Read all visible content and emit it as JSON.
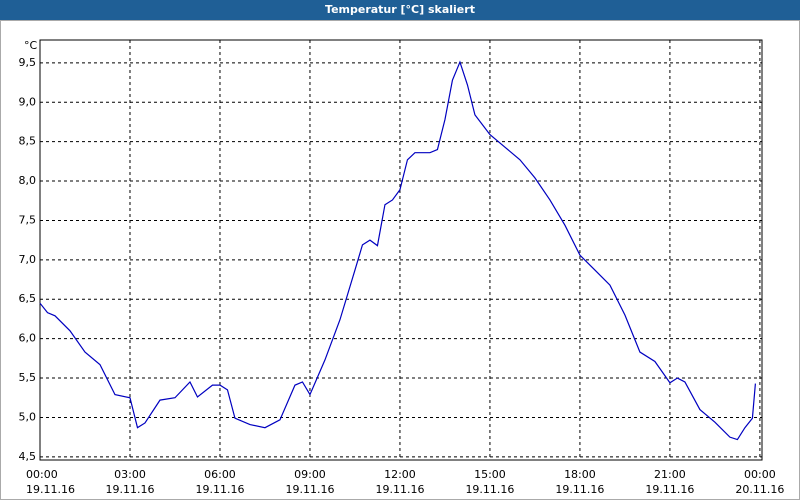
{
  "chart_data": {
    "type": "line",
    "title": "Temperatur [°C] skaliert",
    "y_unit": "°C",
    "x": [
      0,
      0.25,
      0.5,
      1.0,
      1.5,
      2.0,
      2.5,
      3.0,
      3.25,
      3.5,
      4.0,
      4.5,
      5.0,
      5.25,
      5.75,
      6.0,
      6.25,
      6.5,
      7.0,
      7.5,
      8.0,
      8.5,
      8.75,
      9.0,
      9.5,
      10.0,
      10.5,
      10.75,
      11.0,
      11.25,
      11.5,
      11.75,
      12.0,
      12.25,
      12.5,
      13.0,
      13.25,
      13.5,
      13.75,
      14.0,
      14.25,
      14.5,
      15.0,
      15.5,
      16.0,
      16.5,
      17.0,
      17.5,
      18.0,
      18.5,
      19.0,
      19.5,
      20.0,
      20.5,
      21.0,
      21.25,
      21.5,
      22.0,
      22.5,
      23.0,
      23.25,
      23.5,
      23.75,
      23.85
    ],
    "series": [
      {
        "color": "#0000c0",
        "values": [
          6.45,
          6.33,
          6.29,
          6.1,
          5.83,
          5.67,
          5.29,
          5.25,
          4.87,
          4.93,
          5.22,
          5.25,
          5.45,
          5.26,
          5.41,
          5.41,
          5.35,
          4.99,
          4.91,
          4.87,
          4.97,
          5.41,
          5.45,
          5.29,
          5.73,
          6.24,
          6.87,
          7.19,
          7.25,
          7.18,
          7.7,
          7.76,
          7.89,
          8.27,
          8.36,
          8.36,
          8.4,
          8.78,
          9.28,
          9.51,
          9.22,
          8.84,
          8.59,
          8.43,
          8.27,
          8.04,
          7.76,
          7.44,
          7.06,
          6.87,
          6.68,
          6.3,
          5.83,
          5.71,
          5.44,
          5.5,
          5.45,
          5.1,
          4.94,
          4.75,
          4.72,
          4.87,
          4.99,
          5.43
        ]
      }
    ],
    "xlim": [
      0,
      24.07
    ],
    "xticks": [
      {
        "value": 0,
        "label": "00:00"
      },
      {
        "value": 3,
        "label": "03:00"
      },
      {
        "value": 6,
        "label": "06:00"
      },
      {
        "value": 9,
        "label": "09:00"
      },
      {
        "value": 12,
        "label": "12:00"
      },
      {
        "value": 15,
        "label": "15:00"
      },
      {
        "value": 18,
        "label": "18:00"
      },
      {
        "value": 21,
        "label": "21:00"
      },
      {
        "value": 24,
        "label": "00:00"
      }
    ],
    "xtick_dates": [
      "19.11.16",
      "19.11.16",
      "19.11.16",
      "19.11.16",
      "19.11.16",
      "19.11.16",
      "19.11.16",
      "19.11.16",
      "20.11.16"
    ],
    "ylim": [
      4.46,
      9.79
    ],
    "yticks": [
      {
        "value": 4.5,
        "label": "4,5"
      },
      {
        "value": 5.0,
        "label": "5,0"
      },
      {
        "value": 5.5,
        "label": "5,5"
      },
      {
        "value": 6.0,
        "label": "6,0"
      },
      {
        "value": 6.5,
        "label": "6,5"
      },
      {
        "value": 7.0,
        "label": "7,0"
      },
      {
        "value": 7.5,
        "label": "7,5"
      },
      {
        "value": 8.0,
        "label": "8,0"
      },
      {
        "value": 8.5,
        "label": "8,5"
      },
      {
        "value": 9.0,
        "label": "9,0"
      },
      {
        "value": 9.5,
        "label": "9,5"
      }
    ],
    "grid": true
  }
}
